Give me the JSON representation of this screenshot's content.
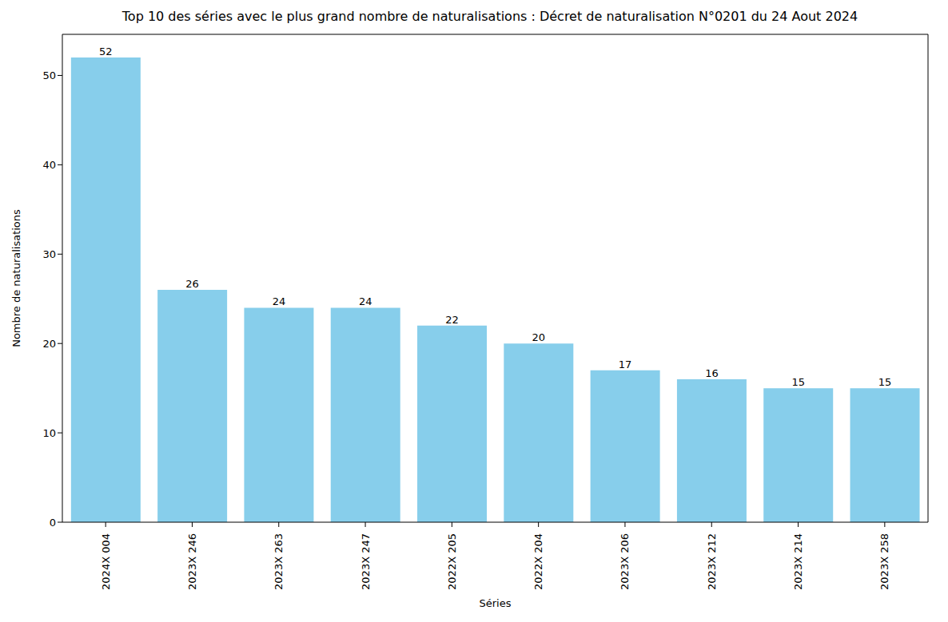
{
  "chart_data": {
    "type": "bar",
    "title": "Top 10 des séries avec le plus grand nombre de naturalisations : Décret de naturalisation N°0201 du 24 Aout 2024",
    "x_label": "Séries",
    "y_label": "Nombre de naturalisations",
    "categories": [
      "2024X 004",
      "2023X 246",
      "2023X 263",
      "2023X 247",
      "2022X 205",
      "2022X 204",
      "2023X 206",
      "2023X 212",
      "2023X 214",
      "2023X 258"
    ],
    "values": [
      52,
      26,
      24,
      24,
      22,
      20,
      17,
      16,
      15,
      15
    ],
    "color": "#87ceeb",
    "ylim": [
      0,
      54.6
    ],
    "yticks": [
      0,
      10,
      20,
      30,
      40,
      50
    ],
    "grid": false,
    "data_labels": true
  }
}
